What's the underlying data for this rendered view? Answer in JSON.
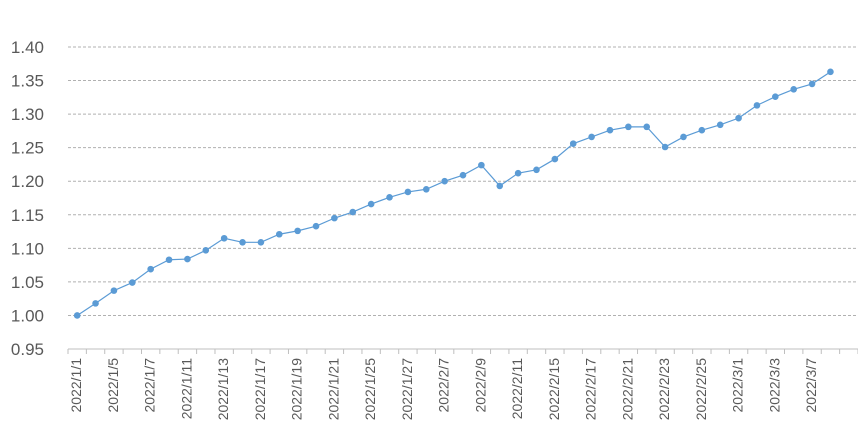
{
  "chart_data": {
    "type": "line",
    "categories": [
      "2022/1/1",
      null,
      "2022/1/5",
      null,
      "2022/1/7",
      null,
      "2022/1/11",
      null,
      "2022/1/13",
      null,
      "2022/1/17",
      null,
      "2022/1/19",
      null,
      "2022/1/21",
      null,
      "2022/1/25",
      null,
      "2022/1/27",
      null,
      "2022/2/7",
      null,
      "2022/2/9",
      null,
      "2022/2/11",
      null,
      "2022/2/15",
      null,
      "2022/2/17",
      null,
      "2022/2/21",
      null,
      "2022/2/23",
      null,
      "2022/2/25",
      null,
      "2022/3/1",
      null,
      "2022/3/3",
      null,
      "2022/3/7",
      null,
      null
    ],
    "series": [
      {
        "color": "#5b9bd5",
        "values": [
          1.0,
          1.018,
          1.037,
          1.049,
          1.069,
          1.083,
          1.084,
          1.097,
          1.115,
          1.109,
          1.109,
          1.121,
          1.126,
          1.133,
          1.145,
          1.154,
          1.166,
          1.176,
          1.184,
          1.188,
          1.2,
          1.209,
          1.224,
          1.193,
          1.212,
          1.217,
          1.233,
          1.256,
          1.266,
          1.276,
          1.281,
          1.281,
          1.251,
          1.266,
          1.276,
          1.284,
          1.294,
          1.313,
          1.326,
          1.337,
          1.345,
          1.363,
          null
        ]
      }
    ],
    "ylim": [
      0.95,
      1.4
    ],
    "yticks": [
      0.95,
      {
        "value": 1.0,
        "label": "1.00"
      },
      1.05,
      {
        "value": 1.1,
        "label": "1.10"
      },
      1.15,
      {
        "value": 1.2,
        "label": "1.20"
      },
      1.25,
      {
        "value": 1.3,
        "label": "1.30"
      },
      1.35,
      {
        "value": 1.4,
        "label": "1.40"
      }
    ],
    "grid": true
  }
}
